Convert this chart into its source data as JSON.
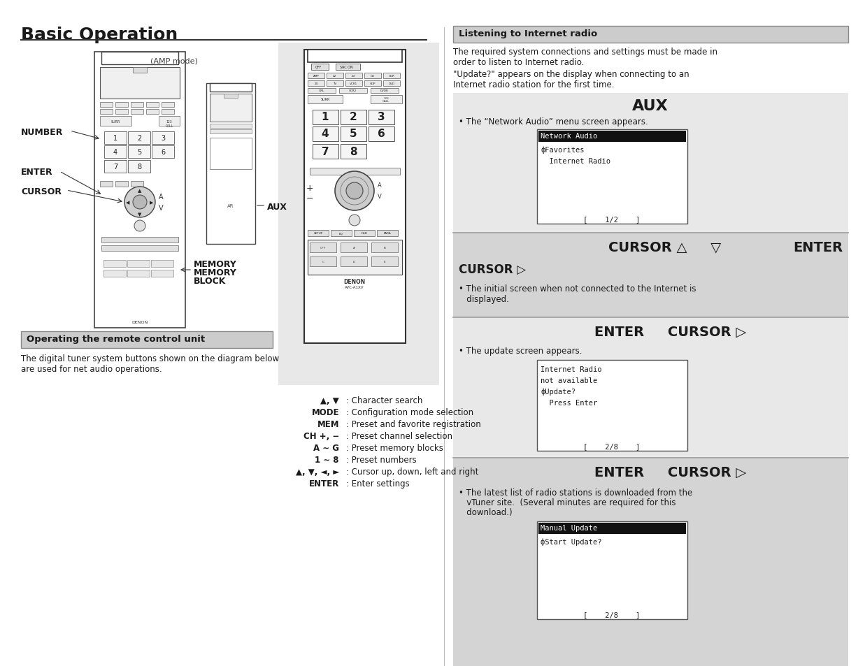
{
  "title": "Basic Operation",
  "bg_color": "#ffffff",
  "left_section_header": "Operating the remote control unit",
  "left_section_text": "The digital tuner system buttons shown on the diagram below\nare used for net audio operations.",
  "right_section_header": "Listening to Internet radio",
  "right_intro_text1": "The required system connections and settings must be made in\norder to listen to Internet radio.",
  "right_intro_text2": "\"Update?\" appears on the display when connecting to an\nInternet radio station for the first time.",
  "aux_label": "AUX",
  "amp_mode_label": "(AMP mode)",
  "bullet1": "• The “Network Audio” menu screen appears.",
  "screen1_header": "Network Audio",
  "screen1_line1": "фFavorites",
  "screen1_line2": "  Internet Radio",
  "screen1_page": "[    1/2    ]",
  "cursor_up_down_label": "CURSOR △     ▽",
  "enter_label": "ENTER",
  "cursor_right_label": "CURSOR ▷",
  "bullet2": "• The initial screen when not connected to the Internet is\n   displayed.",
  "enter_cursor_right1": "ENTER     CURSOR ▷",
  "bullet3": "• The update screen appears.",
  "screen2_l1": "Internet Radio",
  "screen2_l2": "not available",
  "screen2_l3": "фUpdate?",
  "screen2_l4": "  Press Enter",
  "screen2_page": "[    2/8    ]",
  "enter_cursor_right2": "ENTER     CURSOR ▷",
  "bullet4_l1": "• The latest list of radio stations is downloaded from the",
  "bullet4_l2": "   vTuner site.  (Several minutes are required for this",
  "bullet4_l3": "   download.)",
  "screen3_header": "Manual Update",
  "screen3_line1": "фStart Update?",
  "screen3_page": "[    2/8    ]",
  "char_search_label": "▲, ▼",
  "char_search_desc": ": Character search",
  "mode_label": "MODE",
  "mode_desc": ": Configuration mode selection",
  "mem_label": "MEM",
  "mem_desc": ": Preset and favorite registration",
  "ch_label": "CH +, −",
  "ch_desc": ": Preset channel selection",
  "ag_label": "A ∼ G",
  "ag_desc": ": Preset memory blocks",
  "num_label": "1 ∼ 8",
  "num_desc": ": Preset numbers",
  "cursor_udlr_label": "▲, ▼, ◄, ►",
  "cursor_udlr_desc": ": Cursor up, down, left and right",
  "enter_label2": "ENTER",
  "enter_desc": ": Enter settings",
  "number_label": "NUMBER",
  "enter_arrow_label": "ENTER",
  "cursor_arrow_label": "CURSOR",
  "memory_label": "MEMORY",
  "memory2_label": "MEMORY",
  "block_label": "BLOCK",
  "aux_arrow_label": "AUX",
  "gray_bg": "#e8e8e8",
  "darker_gray": "#d4d4d4",
  "header_bg": "#cccccc",
  "divider_color": "#999999",
  "screen_bg": "#f8f8f8",
  "black_header_bg": "#111111"
}
